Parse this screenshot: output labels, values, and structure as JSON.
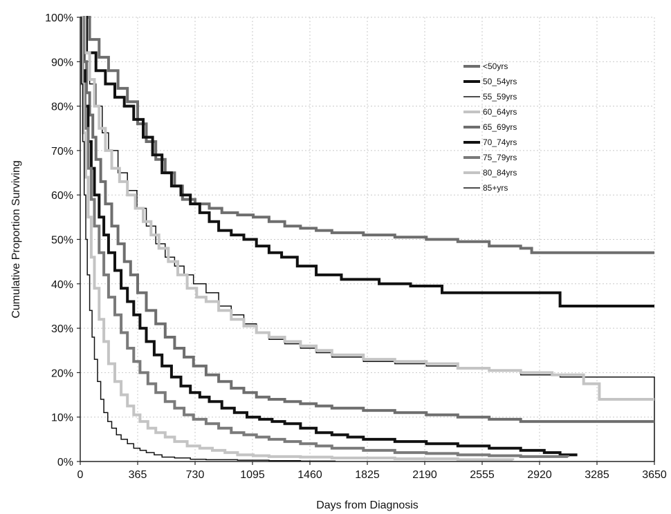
{
  "chart_data": {
    "type": "line",
    "step": true,
    "title": "",
    "xlabel": "Days from Diagnosis",
    "ylabel": "Cumulative Proportion Surviving",
    "xlim": [
      0,
      3650
    ],
    "ylim": [
      0,
      100
    ],
    "x_ticks": [
      0,
      365,
      730,
      1095,
      1460,
      1825,
      2190,
      2555,
      2920,
      3285,
      3650
    ],
    "y_ticks": [
      0,
      10,
      20,
      30,
      40,
      50,
      60,
      70,
      80,
      90,
      100
    ],
    "y_tick_labels": [
      "0%",
      "10%",
      "20%",
      "30%",
      "40%",
      "50%",
      "60%",
      "70%",
      "80%",
      "90%",
      "100%"
    ],
    "grid": true,
    "legend_position": "top-right",
    "series": [
      {
        "name": "<50yrs",
        "color": "#6e6e6e",
        "width": 4,
        "x": [
          0,
          60,
          120,
          180,
          240,
          300,
          365,
          420,
          480,
          540,
          600,
          650,
          730,
          820,
          900,
          1000,
          1100,
          1200,
          1300,
          1400,
          1500,
          1600,
          1800,
          2000,
          2200,
          2400,
          2600,
          2800,
          2870,
          3100,
          3400,
          3650
        ],
        "y": [
          100,
          95,
          91,
          88,
          84,
          81,
          76,
          72,
          68,
          65,
          62,
          59,
          58,
          57,
          56,
          55.5,
          55,
          54,
          53,
          52.5,
          52,
          51.5,
          51,
          50.5,
          50,
          49.5,
          48.5,
          48,
          47,
          47,
          47,
          47
        ]
      },
      {
        "name": "50_54yrs",
        "color": "#111111",
        "width": 4,
        "x": [
          0,
          40,
          100,
          160,
          220,
          280,
          340,
          400,
          460,
          520,
          580,
          640,
          700,
          760,
          820,
          880,
          960,
          1040,
          1120,
          1200,
          1280,
          1380,
          1500,
          1660,
          1900,
          2100,
          2300,
          2600,
          2900,
          3050,
          3300,
          3650
        ],
        "y": [
          100,
          92,
          88,
          85,
          82,
          80,
          77,
          73,
          69,
          65,
          62,
          60,
          58,
          56,
          54,
          52,
          51,
          50,
          48.5,
          47,
          46,
          44,
          42,
          41,
          40,
          39.5,
          38,
          38,
          38,
          35,
          35,
          35
        ]
      },
      {
        "name": "55_59yrs",
        "color": "#111111",
        "width": 1.5,
        "x": [
          0,
          30,
          60,
          100,
          140,
          180,
          240,
          300,
          360,
          420,
          480,
          540,
          600,
          660,
          720,
          800,
          880,
          960,
          1040,
          1120,
          1200,
          1300,
          1400,
          1500,
          1600,
          1800,
          2000,
          2200,
          2400,
          2600,
          2800,
          3050,
          3200,
          3280,
          3650
        ],
        "y": [
          100,
          90,
          85,
          80,
          74,
          70,
          65,
          61,
          57,
          53,
          49,
          46,
          44,
          42,
          40,
          38,
          35,
          33,
          31,
          29,
          27.5,
          26.5,
          25.5,
          24.5,
          23.5,
          22.5,
          22,
          21.5,
          21,
          20.5,
          19.5,
          19,
          19,
          19,
          0
        ]
      },
      {
        "name": "60_64yrs",
        "color": "#c4c4c4",
        "width": 4,
        "x": [
          0,
          30,
          60,
          90,
          120,
          160,
          200,
          250,
          300,
          350,
          400,
          450,
          500,
          560,
          620,
          680,
          740,
          800,
          880,
          960,
          1040,
          1120,
          1200,
          1300,
          1400,
          1500,
          1600,
          1800,
          2000,
          2200,
          2400,
          2600,
          2800,
          3000,
          3200,
          3300,
          3650
        ],
        "y": [
          100,
          92,
          86,
          80,
          75,
          70,
          66,
          63,
          60,
          57,
          54,
          51,
          48,
          45,
          42,
          39,
          37,
          36,
          34,
          32,
          30.5,
          29,
          28,
          27,
          26,
          25,
          24,
          23,
          22.5,
          22,
          21,
          20.5,
          20,
          19.5,
          17.5,
          14,
          14
        ]
      },
      {
        "name": "65_69yrs",
        "color": "#6e6e6e",
        "width": 4,
        "x": [
          0,
          20,
          40,
          60,
          80,
          100,
          130,
          160,
          200,
          240,
          280,
          320,
          365,
          420,
          480,
          540,
          600,
          660,
          720,
          800,
          880,
          960,
          1040,
          1120,
          1200,
          1300,
          1400,
          1500,
          1600,
          1800,
          2000,
          2200,
          2400,
          2600,
          2800,
          3000,
          3650
        ],
        "y": [
          100,
          90,
          83,
          78,
          73,
          68,
          63,
          58,
          53,
          49,
          45,
          42,
          38,
          34,
          31,
          28,
          25.5,
          23.5,
          21.5,
          19.5,
          18,
          16.5,
          15.5,
          14.5,
          14,
          13.5,
          13,
          12.5,
          12,
          11.5,
          11,
          10.5,
          10,
          9.5,
          9,
          9,
          9
        ]
      },
      {
        "name": "70_74yrs",
        "color": "#111111",
        "width": 4,
        "x": [
          0,
          15,
          30,
          50,
          70,
          90,
          120,
          150,
          180,
          220,
          260,
          300,
          340,
          380,
          420,
          470,
          520,
          580,
          640,
          700,
          760,
          820,
          900,
          980,
          1060,
          1140,
          1220,
          1300,
          1400,
          1500,
          1600,
          1700,
          1800,
          2000,
          2200,
          2400,
          2600,
          2800,
          2950,
          3050,
          3160
        ],
        "y": [
          100,
          88,
          80,
          72,
          66,
          60,
          55,
          51,
          47,
          43,
          39,
          36,
          33,
          30,
          27,
          24,
          21.5,
          19,
          17,
          15.5,
          14.5,
          13.5,
          12,
          11,
          10,
          9.5,
          9,
          8.5,
          7.5,
          6.5,
          6,
          5.5,
          5,
          4.5,
          4,
          3.5,
          3,
          2.5,
          2,
          1.5,
          1.5
        ]
      },
      {
        "name": "75_79yrs",
        "color": "#7a7a7a",
        "width": 4,
        "x": [
          0,
          15,
          30,
          50,
          70,
          90,
          120,
          150,
          180,
          220,
          260,
          300,
          340,
          380,
          430,
          480,
          540,
          600,
          660,
          720,
          800,
          880,
          960,
          1040,
          1120,
          1200,
          1300,
          1400,
          1500,
          1600,
          1800,
          2000,
          2200,
          2400,
          2600,
          2800,
          3100
        ],
        "y": [
          100,
          85,
          75,
          66,
          59,
          53,
          47,
          42,
          37,
          33,
          29,
          25.5,
          22.5,
          20,
          17.5,
          15.5,
          13.5,
          12,
          10.5,
          9.5,
          8.5,
          7.5,
          6.5,
          6,
          5.5,
          5,
          4.5,
          4,
          3.5,
          3,
          2.5,
          2,
          1.8,
          1.5,
          1.3,
          1.1,
          1
        ]
      },
      {
        "name": "80_84yrs",
        "color": "#c4c4c4",
        "width": 4,
        "x": [
          0,
          10,
          20,
          35,
          50,
          70,
          90,
          120,
          150,
          180,
          220,
          260,
          300,
          340,
          380,
          430,
          480,
          540,
          600,
          680,
          760,
          840,
          920,
          1000,
          1100,
          1200,
          1400,
          1600,
          2000,
          2400,
          2750
        ],
        "y": [
          100,
          85,
          74,
          64,
          55,
          46,
          39,
          32,
          27,
          22,
          18,
          15,
          12.5,
          10.5,
          9,
          7.5,
          6.5,
          5.5,
          4.5,
          3.5,
          3,
          2.5,
          2,
          1.5,
          1.3,
          1.1,
          1,
          0.8,
          0.6,
          0.4,
          0.3
        ]
      },
      {
        "name": "85+yrs",
        "color": "#111111",
        "width": 1.5,
        "x": [
          0,
          8,
          16,
          25,
          35,
          45,
          60,
          75,
          90,
          110,
          130,
          150,
          175,
          200,
          230,
          260,
          300,
          340,
          380,
          420,
          470,
          520,
          600,
          700,
          800,
          1000,
          1200,
          1400,
          1620
        ],
        "y": [
          100,
          85,
          72,
          60,
          50,
          42,
          34,
          28,
          23,
          18,
          14,
          11,
          9,
          7.5,
          6,
          5,
          4,
          3,
          2.5,
          2,
          1.5,
          1,
          0.8,
          0.5,
          0.4,
          0.3,
          0.2,
          0.1,
          0
        ]
      }
    ]
  }
}
